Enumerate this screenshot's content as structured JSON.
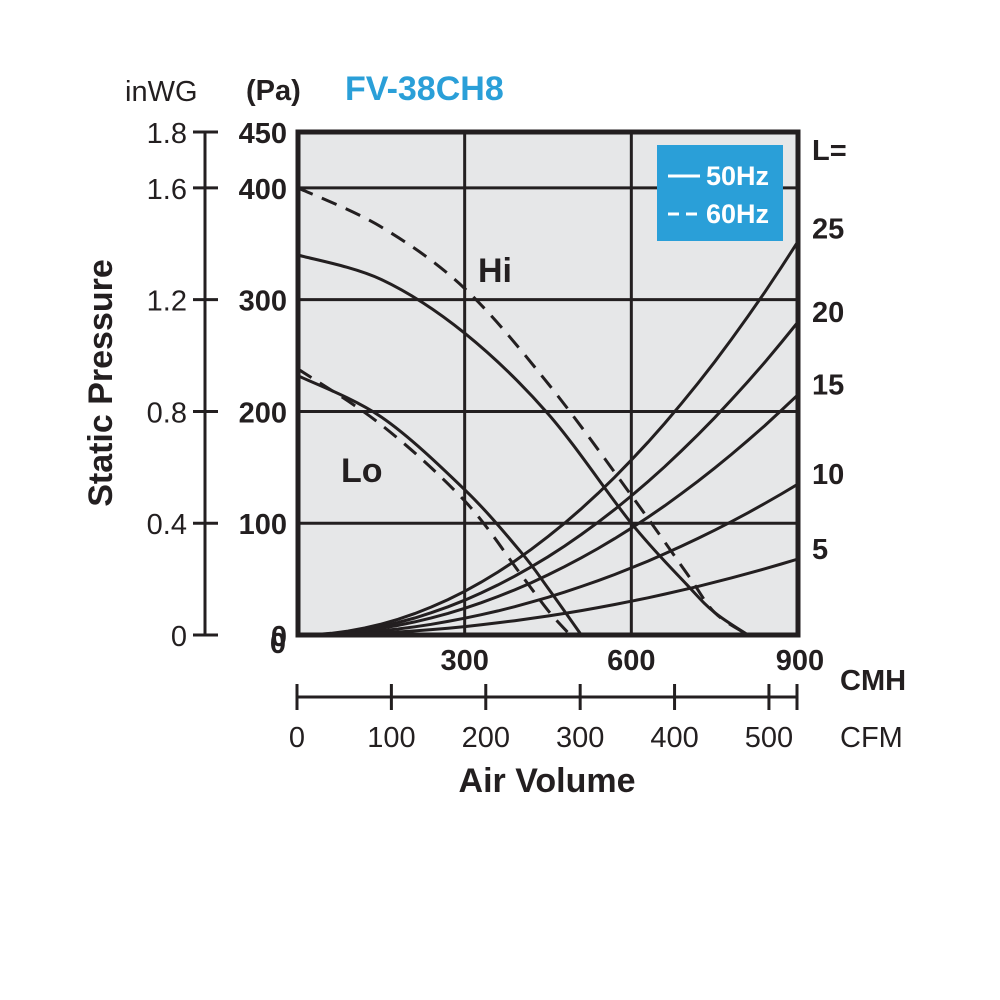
{
  "title": "FV-38CH8",
  "title_color": "#2a9fd8",
  "plot_bg_color": "#e6e7e8",
  "legend_bg_color": "#2a9fd8",
  "ink_color": "#231f20",
  "chart_data": {
    "type": "line",
    "xlabel": "Air Volume",
    "ylabel": "Static Pressure",
    "x_unit_primary": "CMH",
    "x_unit_secondary": "CFM",
    "y_unit_primary": "(Pa)",
    "y_unit_secondary": "inWG",
    "xlim": [
      0,
      900
    ],
    "ylim": [
      0,
      450
    ],
    "x_ticks_cmh": [
      "0",
      "300",
      "600",
      "900"
    ],
    "x_ticks_cfm": [
      "0",
      "100",
      "200",
      "300",
      "400",
      "500"
    ],
    "y_ticks_pa": [
      "0",
      "100",
      "200",
      "300",
      "400",
      "450"
    ],
    "y_ticks_inwg": [
      "0",
      "0.4",
      "0.8",
      "1.2",
      "1.6",
      "1.8"
    ],
    "grid": true,
    "legend": {
      "position": "top-right",
      "entries": [
        {
          "label": "50Hz",
          "style": "solid"
        },
        {
          "label": "60Hz",
          "style": "dashed"
        }
      ]
    },
    "fan_curves": [
      {
        "label": "Hi",
        "freq": "50Hz",
        "style": "solid",
        "x": [
          0,
          150,
          300,
          450,
          600,
          700,
          750,
          810
        ],
        "y": [
          340,
          318,
          270,
          198,
          100,
          45,
          20,
          0
        ]
      },
      {
        "label": "Hi",
        "freq": "60Hz",
        "style": "dashed",
        "x": [
          0,
          150,
          300,
          450,
          600,
          700,
          750,
          810
        ],
        "y": [
          400,
          365,
          310,
          225,
          125,
          55,
          20,
          0
        ]
      },
      {
        "label": "Lo",
        "freq": "50Hz",
        "style": "solid",
        "x": [
          0,
          150,
          300,
          400,
          450,
          510
        ],
        "y": [
          232,
          195,
          130,
          75,
          42,
          0
        ]
      },
      {
        "label": "Lo",
        "freq": "60Hz",
        "style": "dashed",
        "x": [
          0,
          150,
          300,
          400,
          450,
          490
        ],
        "y": [
          238,
          188,
          120,
          55,
          22,
          0
        ]
      }
    ],
    "system_curves": {
      "title": "L=",
      "x": [
        0,
        900
      ],
      "curves": [
        {
          "label": "25",
          "y_at_900": 352
        },
        {
          "label": "20",
          "y_at_900": 280
        },
        {
          "label": "15",
          "y_at_900": 215
        },
        {
          "label": "10",
          "y_at_900": 135
        },
        {
          "label": "5",
          "y_at_900": 68
        }
      ]
    },
    "annotations": [
      "Hi",
      "Lo"
    ]
  }
}
